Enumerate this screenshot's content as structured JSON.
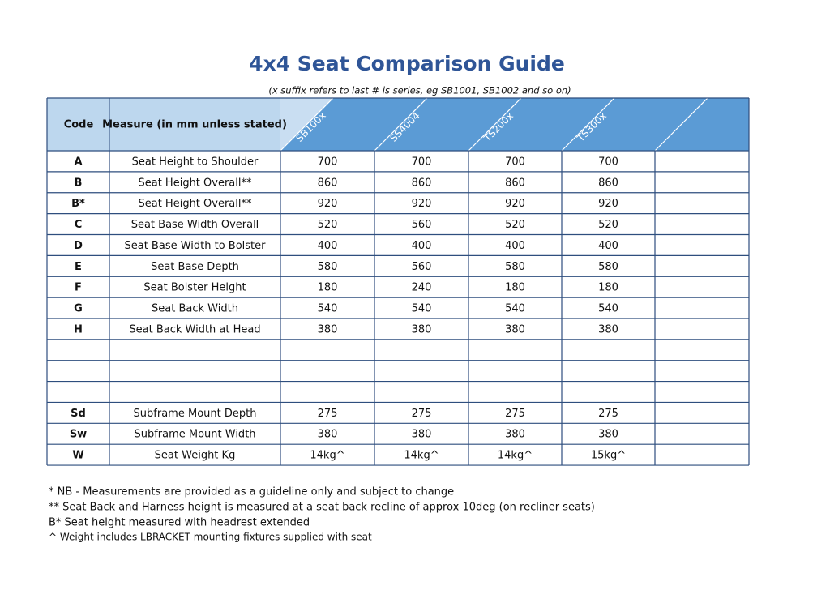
{
  "header": {
    "title": "4x4 Seat Comparison Guide",
    "subtitle": "(x suffix refers to last # is series, eg SB1001, SB1002 and so on)"
  },
  "table": {
    "columns": [
      "Code",
      "Measure (in mm unless stated)",
      "SB100x",
      "SS4004",
      "TS200x",
      "TS300x"
    ],
    "rows": [
      [
        "A",
        "Seat Height to Shoulder",
        "700",
        "700",
        "700",
        "700"
      ],
      [
        "B",
        "Seat Height Overall**",
        "860",
        "860",
        "860",
        "860"
      ],
      [
        "B*",
        "Seat Height Overall**",
        "920",
        "920",
        "920",
        "920"
      ],
      [
        "C",
        "Seat Base Width Overall",
        "520",
        "560",
        "520",
        "520"
      ],
      [
        "D",
        "Seat Base Width to Bolster",
        "400",
        "400",
        "400",
        "400"
      ],
      [
        "E",
        "Seat Base Depth",
        "580",
        "560",
        "580",
        "580"
      ],
      [
        "F",
        "Seat Bolster Height",
        "180",
        "240",
        "180",
        "180"
      ],
      [
        "G",
        "Seat Back Width",
        "540",
        "540",
        "540",
        "540"
      ],
      [
        "H",
        "Seat Back Width at Head",
        "380",
        "380",
        "380",
        "380"
      ]
    ],
    "subframe_rows": [
      [
        "Sd",
        "Subframe Mount Depth",
        "275",
        "275",
        "275",
        "275"
      ],
      [
        "Sw",
        "Subframe Mount Width",
        "380",
        "380",
        "380",
        "380"
      ],
      [
        "W",
        "Seat Weight Kg",
        "14kg^",
        "14kg^",
        "14kg^",
        "15kg^"
      ]
    ]
  },
  "notes": [
    "* NB - Measurements are provided as a guideline only and subject to change",
    "** Seat Back and Harness height is measured at a seat back recline of approx 10deg (on recliner seats)",
    "B* Seat height measured with headrest extended",
    "^ Weight includes LBRACKET mounting fixtures supplied with seat"
  ]
}
